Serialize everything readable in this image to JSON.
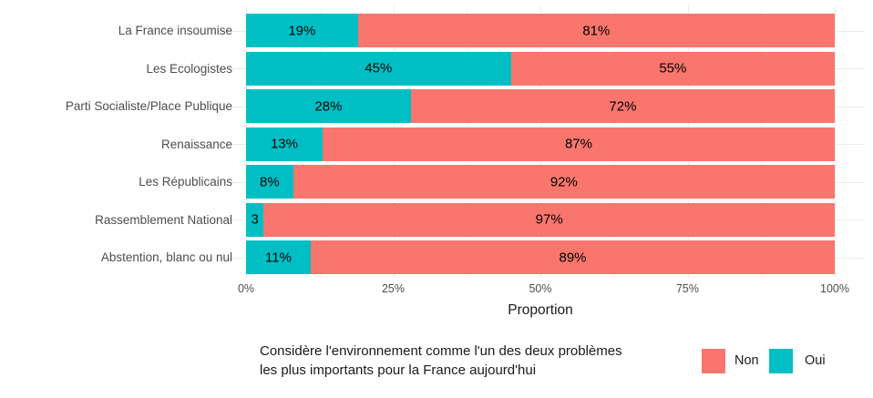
{
  "chart_data": {
    "type": "bar",
    "orientation": "horizontal",
    "stacked": true,
    "categories": [
      "La France insoumise",
      "Les Ecologistes",
      "Parti Socialiste/Place Publique",
      "Renaissance",
      "Les Républicains",
      "Rassemblement National",
      "Abstention, blanc ou nul"
    ],
    "series": [
      {
        "name": "Oui",
        "color": "#00BFC4",
        "values": [
          19,
          45,
          28,
          13,
          8,
          3,
          11
        ],
        "labels": [
          "19%",
          "45%",
          "28%",
          "13%",
          "8%",
          "3",
          "11%"
        ]
      },
      {
        "name": "Non",
        "color": "#F8766D",
        "values": [
          81,
          55,
          72,
          87,
          92,
          97,
          89
        ],
        "labels": [
          "81%",
          "55%",
          "72%",
          "87%",
          "92%",
          "97%",
          "89%"
        ]
      }
    ],
    "xlabel": "Proportion",
    "x_ticks": {
      "positions": [
        0,
        25,
        50,
        75,
        100
      ],
      "labels": [
        "0%",
        "25%",
        "50%",
        "75%",
        "100%"
      ]
    },
    "x_minor_ticks": [
      12.5,
      37.5,
      62.5,
      87.5
    ],
    "xlim": [
      0,
      100
    ],
    "grid": true,
    "legend": {
      "position": "bottom",
      "title_lines": [
        "Considère l'environnement comme l'un des deux problèmes",
        "les plus importants pour la France aujourd'hui"
      ],
      "items": [
        {
          "label": "Non",
          "color": "#F8766D"
        },
        {
          "label": "Oui",
          "color": "#00BFC4"
        }
      ]
    },
    "colors": {
      "oui": "#00BFC4",
      "non": "#F8766D",
      "grid_major": "#ebebeb",
      "grid_minor": "#f5f5f5",
      "axis_text": "#4d4d4d"
    }
  }
}
